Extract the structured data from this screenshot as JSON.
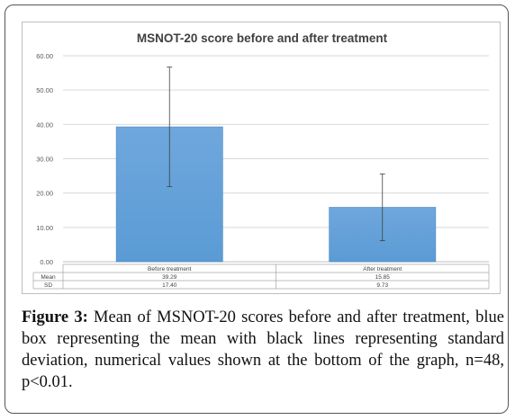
{
  "chart_data": {
    "type": "bar",
    "title": "MSNOT-20 score before and after treatment",
    "categories": [
      "Before treatment",
      "After treatment"
    ],
    "series": [
      {
        "name": "Mean",
        "values": [
          39.29,
          15.85
        ],
        "error": [
          17.4,
          9.73
        ]
      }
    ],
    "table": {
      "row_labels": [
        "Mean",
        "SD"
      ],
      "rows": [
        [
          "39.29",
          "15.85"
        ],
        [
          "17.40",
          "9.73"
        ]
      ]
    },
    "y_ticks": [
      "0.00",
      "10.00",
      "20.00",
      "30.00",
      "40.00",
      "50.00",
      "60.00"
    ],
    "ylim": [
      0,
      60
    ],
    "grid": true,
    "legend": "none",
    "colors": {
      "bar": "#5b9bd5",
      "bar_top": "#6ea7dc",
      "error_line": "#404040",
      "grid": "#d9d9d9"
    }
  },
  "caption": {
    "label": "Figure 3:",
    "text": " Mean of MSNOT-20 scores before and after treatment, blue box representing the mean with black lines representing standard deviation, numerical values shown at the bottom of the graph, n=48, p<0.01."
  }
}
